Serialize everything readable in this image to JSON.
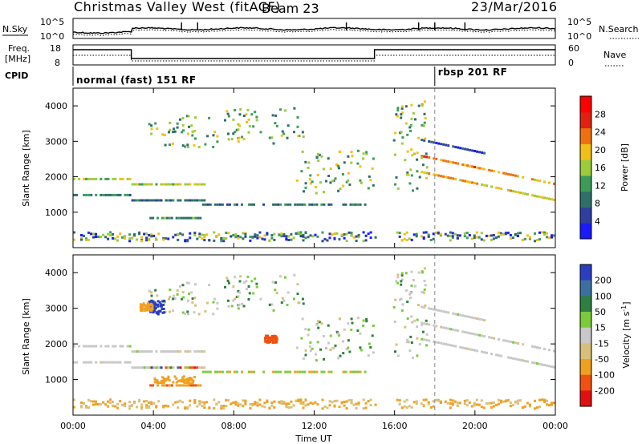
{
  "header": {
    "radar": "Christmas Valley West (fitACF)",
    "beam": "Beam 23",
    "date": "23/Mar/2016"
  },
  "top_panel": {
    "left_label": "N.Sky",
    "right_label": "N.Search",
    "left_ticks": [
      "10^5",
      "10^0"
    ],
    "right_ticks": [
      "10^5",
      "10^0"
    ]
  },
  "freq_panel": {
    "left_label_1": "Freq.",
    "left_label_2": "[MHz]",
    "right_label": "Nave",
    "left_ticks": [
      "18",
      "8"
    ],
    "right_ticks": [
      "60",
      "0"
    ]
  },
  "cpid": {
    "label": "CPID",
    "mode1": "normal (fast) 151 RF",
    "mode2": "rbsp 201 RF",
    "switch_time_h": 18.0
  },
  "colors": {
    "power": [
      "#1a1aff",
      "#2e3f9e",
      "#2e6f6a",
      "#3b9c5a",
      "#9ccc3c",
      "#f0c018",
      "#f07010",
      "#e02010",
      "#ff0000"
    ],
    "velocity": [
      "#2a3fbf",
      "#3a70a0",
      "#2e8040",
      "#7acc3a",
      "#c8c8c8",
      "#d9c079",
      "#f0a020",
      "#f05010",
      "#e01010"
    ]
  },
  "chart_data": [
    {
      "type": "heatmap",
      "name": "Power",
      "xlabel": "",
      "ylabel": "Slant Range [km]",
      "xlim": [
        "00:00",
        "24:00"
      ],
      "ylim": [
        0,
        4500
      ],
      "yticks": [
        "1000",
        "2000",
        "3000",
        "4000"
      ],
      "colorbar": {
        "label": "Power [dB]",
        "ticks": [
          "4",
          "8",
          "12",
          "16",
          "20",
          "24",
          "28"
        ],
        "range": [
          0,
          32
        ]
      },
      "bands": [
        {
          "t0": 0.0,
          "t1": 2.9,
          "r0": 1450,
          "r1": 1950,
          "peak": 1720,
          "level": "high"
        },
        {
          "t0": 2.9,
          "t1": 6.6,
          "r0": 1300,
          "r1": 2000,
          "peak": 1650,
          "level": "mid"
        },
        {
          "t0": 3.8,
          "t1": 6.4,
          "r0": 800,
          "r1": 1200,
          "level": "low"
        },
        {
          "t0": 6.3,
          "t1": 14.6,
          "r0": 1180,
          "r1": 1400,
          "level": "mid"
        },
        {
          "t0": 17.3,
          "t1": 24.0,
          "r0": 1350,
          "r1": 2750,
          "peak": 1600,
          "level": "high"
        },
        {
          "t0": 0.0,
          "t1": 24.0,
          "r0": 150,
          "r1": 400,
          "level": "speckle"
        }
      ],
      "patches": [
        {
          "t0": 3.5,
          "t1": 7.2,
          "r0": 2800,
          "r1": 3700
        },
        {
          "t0": 7.5,
          "t1": 11.5,
          "r0": 2900,
          "r1": 3900
        },
        {
          "t0": 11.0,
          "t1": 14.9,
          "r0": 1500,
          "r1": 2700
        },
        {
          "t0": 15.9,
          "t1": 17.6,
          "r0": 1500,
          "r1": 4100
        }
      ],
      "data_gap_h": [
        15.0,
        15.9
      ]
    },
    {
      "type": "heatmap",
      "name": "Velocity",
      "xlabel": "Time UT",
      "ylabel": "Slant Range [km]",
      "xlim": [
        "00:00",
        "24:00"
      ],
      "ylim": [
        0,
        4500
      ],
      "xticks": [
        "00:00",
        "04:00",
        "08:00",
        "12:00",
        "16:00",
        "20:00",
        "00:00"
      ],
      "yticks": [
        "1000",
        "2000",
        "3000",
        "4000"
      ],
      "colorbar": {
        "label": "Velocity [m s-1]",
        "ticks": [
          "200",
          "100",
          "50",
          "15",
          "-15",
          "-50",
          "-100",
          "-200"
        ]
      },
      "features": [
        {
          "t0": 0.0,
          "t1": 6.5,
          "r0": 1300,
          "r1": 2000,
          "velocity": "~0 (ground scatter)"
        },
        {
          "t0": 3.8,
          "t1": 6.2,
          "r0": 1250,
          "r1": 1700,
          "velocity": "mixed -200..200"
        },
        {
          "t0": 3.6,
          "t1": 4.6,
          "r0": 2800,
          "r1": 3300,
          "velocity": "+200 / -100"
        },
        {
          "t0": 3.8,
          "t1": 6.3,
          "r0": 800,
          "r1": 1100,
          "velocity": "-50"
        },
        {
          "t0": 6.3,
          "t1": 14.6,
          "r0": 1180,
          "r1": 1400,
          "velocity": "+15..+50 / -50"
        },
        {
          "t0": 17.3,
          "t1": 24.0,
          "r0": 1350,
          "r1": 2750,
          "velocity": "~0 (ground scatter)"
        }
      ]
    }
  ]
}
